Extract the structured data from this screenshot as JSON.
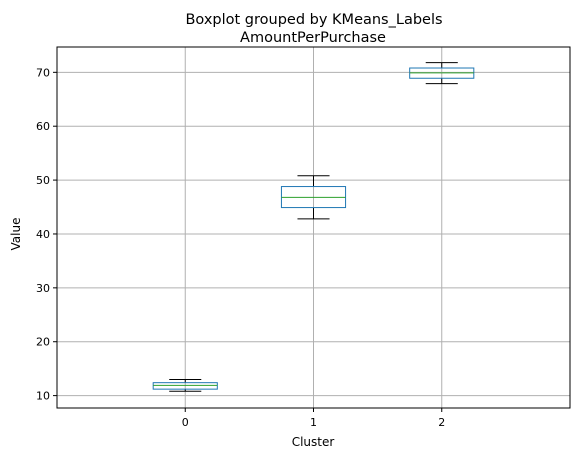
{
  "chart_data": {
    "type": "boxplot",
    "suptitle": "Boxplot grouped by KMeans_Labels",
    "title": "AmountPerPurchase",
    "xlabel": "Cluster",
    "ylabel": "Value",
    "ylim": [
      7.7,
      74.7
    ],
    "yticks": [
      10,
      20,
      30,
      40,
      50,
      60,
      70
    ],
    "grid": true,
    "categories": [
      "0",
      "1",
      "2"
    ],
    "boxes": [
      {
        "category": "0",
        "whislo": 10.8,
        "q1": 11.2,
        "med": 11.9,
        "q3": 12.4,
        "whishi": 13.0
      },
      {
        "category": "1",
        "whislo": 42.8,
        "q1": 44.9,
        "med": 46.8,
        "q3": 48.8,
        "whishi": 50.8
      },
      {
        "category": "2",
        "whislo": 67.9,
        "q1": 68.9,
        "med": 69.9,
        "q3": 70.8,
        "whishi": 71.8
      }
    ],
    "colors": {
      "box": "#1f77b4",
      "median": "#2ca02c",
      "whisker": "#000000",
      "grid": "#b0b0b0"
    }
  }
}
